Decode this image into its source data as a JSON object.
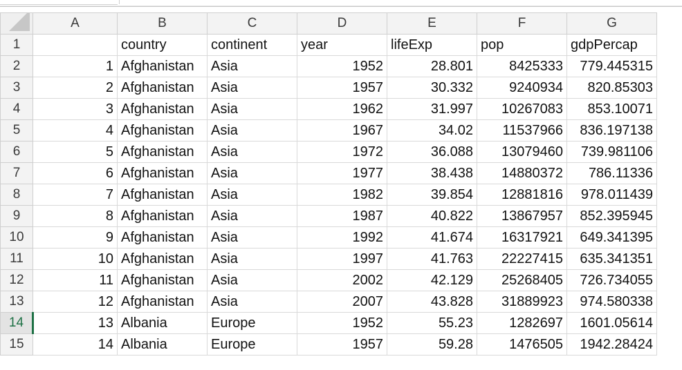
{
  "columns": [
    "A",
    "B",
    "C",
    "D",
    "E",
    "F",
    "G"
  ],
  "rows": [
    {
      "num": "1",
      "cells": [
        "",
        "country",
        "continent",
        "year",
        "lifeExp",
        "pop",
        "gdpPercap"
      ]
    },
    {
      "num": "2",
      "cells": [
        "1",
        "Afghanistan",
        "Asia",
        "1952",
        "28.801",
        "8425333",
        "779.445315"
      ]
    },
    {
      "num": "3",
      "cells": [
        "2",
        "Afghanistan",
        "Asia",
        "1957",
        "30.332",
        "9240934",
        "820.85303"
      ]
    },
    {
      "num": "4",
      "cells": [
        "3",
        "Afghanistan",
        "Asia",
        "1962",
        "31.997",
        "10267083",
        "853.10071"
      ]
    },
    {
      "num": "5",
      "cells": [
        "4",
        "Afghanistan",
        "Asia",
        "1967",
        "34.02",
        "11537966",
        "836.197138"
      ]
    },
    {
      "num": "6",
      "cells": [
        "5",
        "Afghanistan",
        "Asia",
        "1972",
        "36.088",
        "13079460",
        "739.981106"
      ]
    },
    {
      "num": "7",
      "cells": [
        "6",
        "Afghanistan",
        "Asia",
        "1977",
        "38.438",
        "14880372",
        "786.11336"
      ]
    },
    {
      "num": "8",
      "cells": [
        "7",
        "Afghanistan",
        "Asia",
        "1982",
        "39.854",
        "12881816",
        "978.011439"
      ]
    },
    {
      "num": "9",
      "cells": [
        "8",
        "Afghanistan",
        "Asia",
        "1987",
        "40.822",
        "13867957",
        "852.395945"
      ]
    },
    {
      "num": "10",
      "cells": [
        "9",
        "Afghanistan",
        "Asia",
        "1992",
        "41.674",
        "16317921",
        "649.341395"
      ]
    },
    {
      "num": "11",
      "cells": [
        "10",
        "Afghanistan",
        "Asia",
        "1997",
        "41.763",
        "22227415",
        "635.341351"
      ]
    },
    {
      "num": "12",
      "cells": [
        "11",
        "Afghanistan",
        "Asia",
        "2002",
        "42.129",
        "25268405",
        "726.734055"
      ]
    },
    {
      "num": "13",
      "cells": [
        "12",
        "Afghanistan",
        "Asia",
        "2007",
        "43.828",
        "31889923",
        "974.580338"
      ]
    },
    {
      "num": "14",
      "cells": [
        "13",
        "Albania",
        "Europe",
        "1952",
        "55.23",
        "1282697",
        "1601.05614"
      ]
    },
    {
      "num": "15",
      "cells": [
        "14",
        "Albania",
        "Europe",
        "1957",
        "59.28",
        "1476505",
        "1942.28424"
      ]
    }
  ],
  "active_row": "14",
  "colors": {
    "active_row_accent": "#1e7145",
    "header_bg": "#f3f3f3",
    "gridline": "#d9d9d9"
  }
}
